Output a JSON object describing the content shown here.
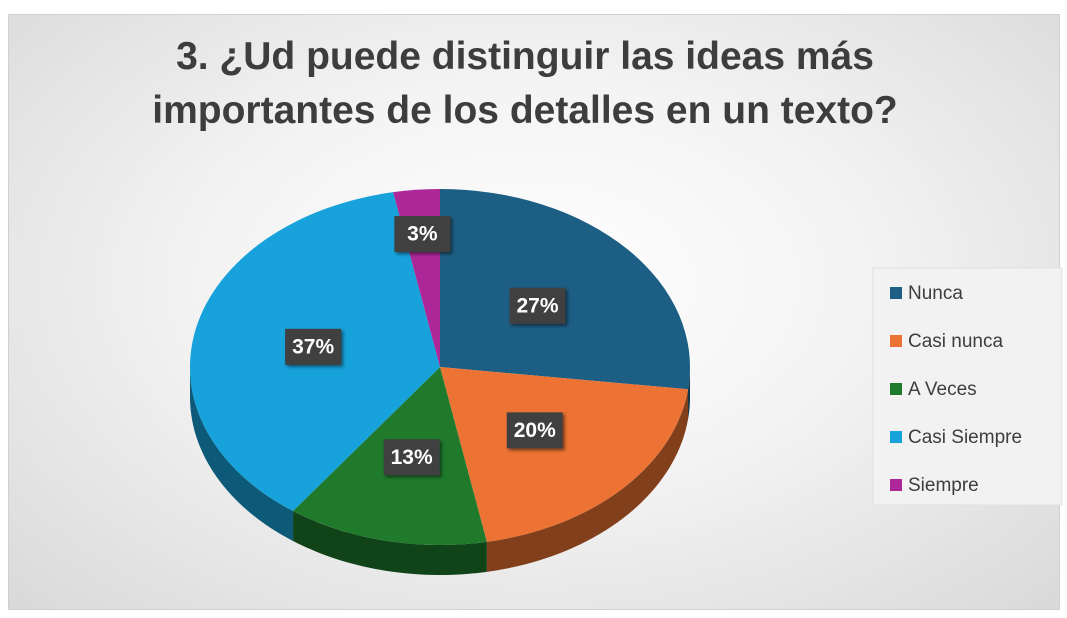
{
  "chart_data": {
    "type": "pie",
    "title": "3. ¿Ud puede distinguir las ideas más importantes de los detalles en un texto?",
    "categories": [
      "Nunca",
      "Casi nunca",
      "A Veces",
      "Casi Siempre",
      "Siempre"
    ],
    "values": [
      27,
      20,
      13,
      37,
      3
    ],
    "value_labels": [
      "27%",
      "20%",
      "13%",
      "37%",
      "3%"
    ],
    "colors": [
      "#1d5e84",
      "#ec7333",
      "#1f7a2c",
      "#17a2db",
      "#ad2799"
    ],
    "legend": "right"
  }
}
